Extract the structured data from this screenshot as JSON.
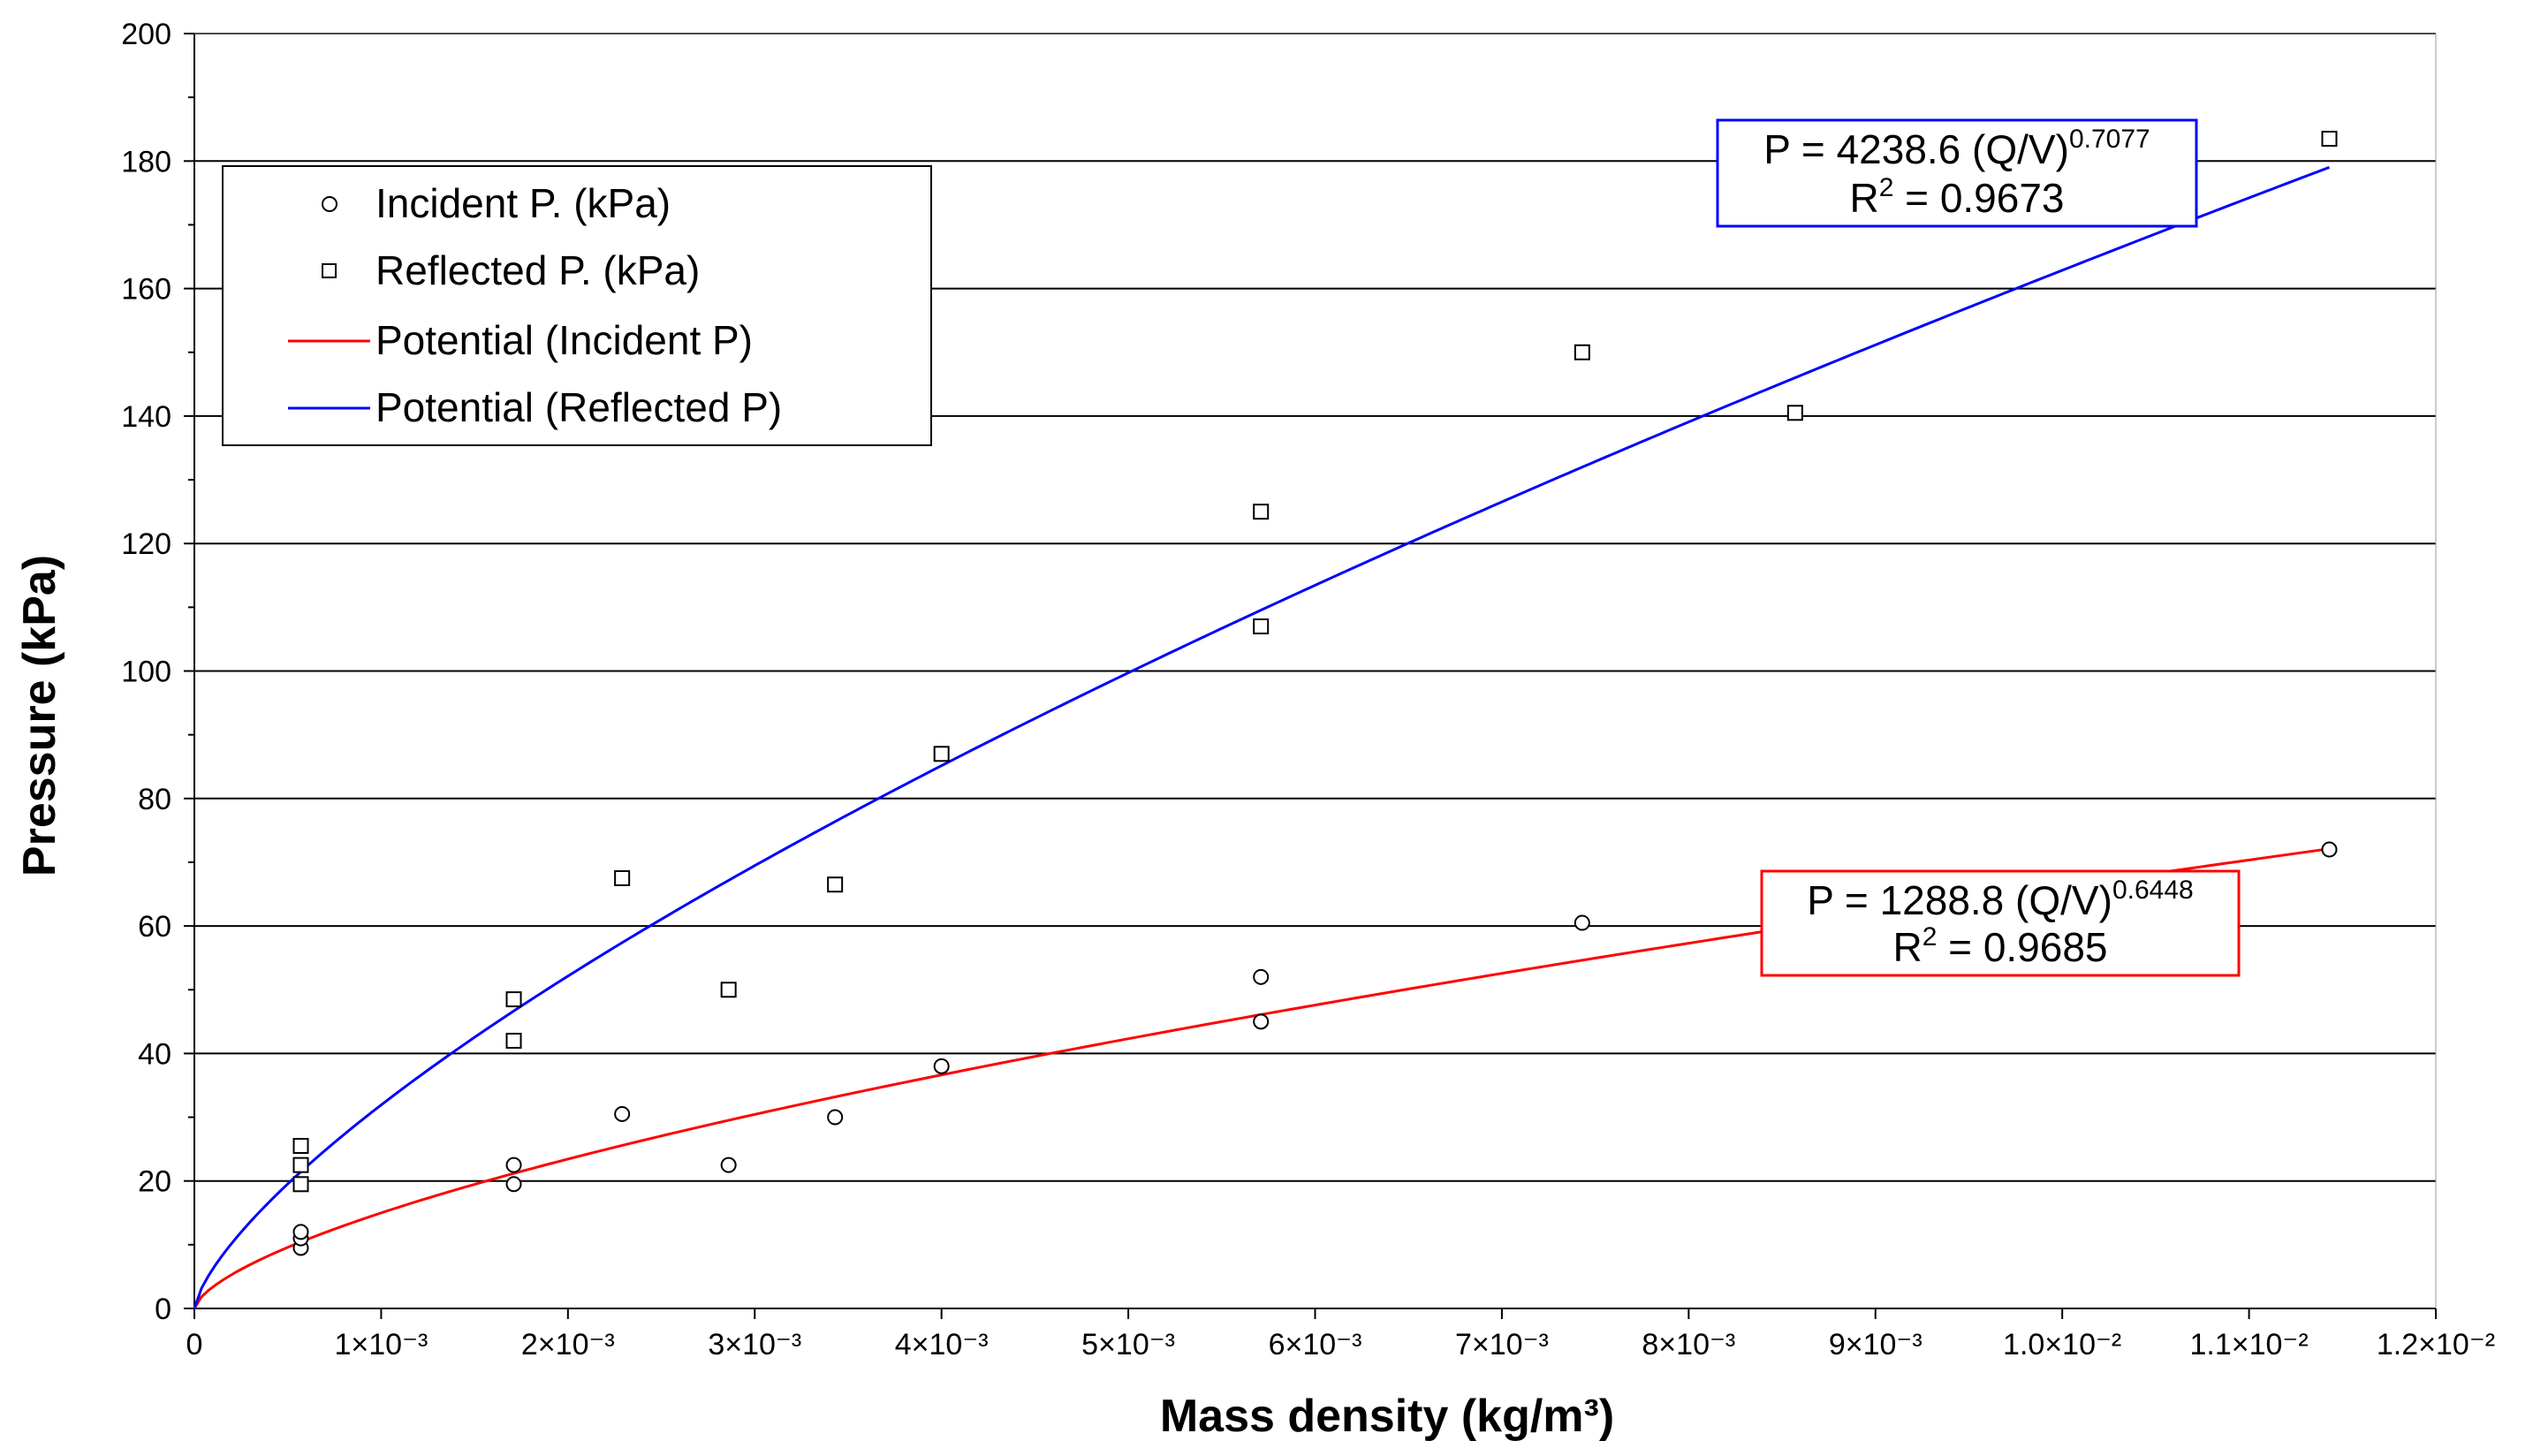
{
  "chart_data": {
    "type": "scatter",
    "title": "",
    "xlabel": "Mass density (kg/m³)",
    "ylabel": "Pressure (kPa)",
    "xlim": [
      0,
      0.012
    ],
    "ylim": [
      0,
      200
    ],
    "grid": "horizontal",
    "x_ticks": [
      0,
      0.001,
      0.002,
      0.003,
      0.004,
      0.005,
      0.006,
      0.007,
      0.008,
      0.009,
      0.01,
      0.011,
      0.012
    ],
    "x_tick_labels": [
      "0",
      "1×10⁻³",
      "2×10⁻³",
      "3×10⁻³",
      "4×10⁻³",
      "5×10⁻³",
      "6×10⁻³",
      "7×10⁻³",
      "8×10⁻³",
      "9×10⁻³",
      "1.0×10⁻²",
      "1.1×10⁻²",
      "1.2×10⁻²"
    ],
    "y_ticks": [
      0,
      20,
      40,
      60,
      80,
      100,
      120,
      140,
      160,
      180,
      200
    ],
    "y_tick_labels": [
      "0",
      "20",
      "40",
      "60",
      "80",
      "100",
      "120",
      "140",
      "160",
      "180",
      "200"
    ],
    "legend_position": "top-left",
    "series": [
      {
        "name": "Incident P. (kPa)",
        "kind": "points",
        "marker": "circle",
        "color": "#000000",
        "points": [
          {
            "x": 0.00057,
            "y": 9.5
          },
          {
            "x": 0.00057,
            "y": 11
          },
          {
            "x": 0.00057,
            "y": 12
          },
          {
            "x": 0.00171,
            "y": 19.5
          },
          {
            "x": 0.00171,
            "y": 22.5
          },
          {
            "x": 0.00229,
            "y": 30.5
          },
          {
            "x": 0.00286,
            "y": 22.5
          },
          {
            "x": 0.00343,
            "y": 30
          },
          {
            "x": 0.004,
            "y": 38
          },
          {
            "x": 0.00571,
            "y": 45
          },
          {
            "x": 0.00571,
            "y": 52
          },
          {
            "x": 0.00743,
            "y": 60.5
          },
          {
            "x": 0.01143,
            "y": 72
          }
        ]
      },
      {
        "name": "Reflected P. (kPa)",
        "kind": "points",
        "marker": "square",
        "color": "#000000",
        "points": [
          {
            "x": 0.00057,
            "y": 19.5
          },
          {
            "x": 0.00057,
            "y": 22.5
          },
          {
            "x": 0.00057,
            "y": 25.5
          },
          {
            "x": 0.00171,
            "y": 42
          },
          {
            "x": 0.00171,
            "y": 48.5
          },
          {
            "x": 0.00229,
            "y": 67.5
          },
          {
            "x": 0.00286,
            "y": 50
          },
          {
            "x": 0.00343,
            "y": 66.5
          },
          {
            "x": 0.004,
            "y": 87
          },
          {
            "x": 0.00571,
            "y": 107
          },
          {
            "x": 0.00571,
            "y": 125
          },
          {
            "x": 0.00743,
            "y": 150
          },
          {
            "x": 0.00857,
            "y": 140.5
          },
          {
            "x": 0.01143,
            "y": 183.5
          }
        ]
      },
      {
        "name": "Potential (Incident P)",
        "kind": "power-fit",
        "color": "#ff0000",
        "coefficient": 1288.8,
        "exponent": 0.6448,
        "x_range": [
          0,
          0.01143
        ]
      },
      {
        "name": "Potential (Reflected P)",
        "kind": "power-fit",
        "color": "#0000ff",
        "coefficient": 4238.6,
        "exponent": 0.7077,
        "x_range": [
          0,
          0.01143
        ]
      }
    ],
    "annotations": [
      {
        "series": "Potential (Reflected P)",
        "equation": "P = 4238.6 (Q/V)",
        "exponent_text": "0.7077",
        "r2_label": "R",
        "r2_sup": "2",
        "r2_value": " = 0.9673",
        "border_color": "#0000ff"
      },
      {
        "series": "Potential (Incident P)",
        "equation": "P = 1288.8 (Q/V)",
        "exponent_text": "0.6448",
        "r2_label": "R",
        "r2_sup": "2",
        "r2_value": " = 0.9685",
        "border_color": "#ff0000"
      }
    ]
  }
}
